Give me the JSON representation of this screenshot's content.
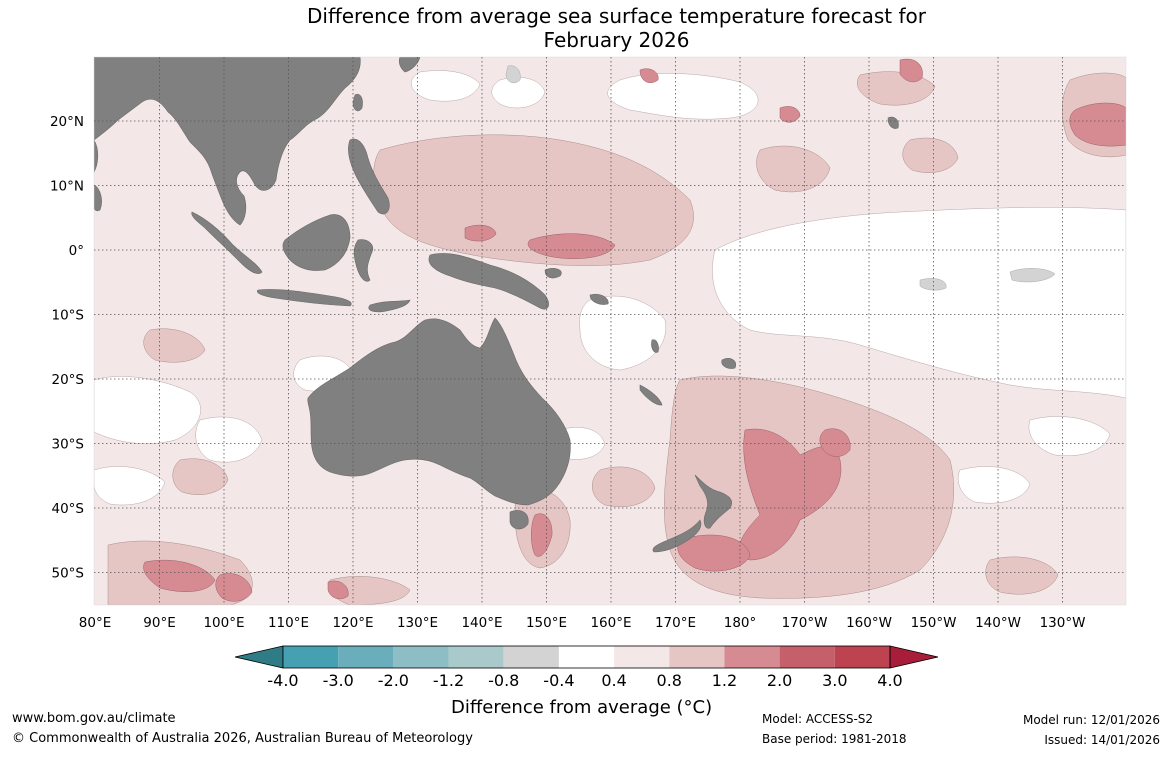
{
  "title_line1": "Difference from average sea surface temperature forecast for",
  "title_line2": "February 2026",
  "lat_labels": [
    "20°N",
    "10°N",
    "0°",
    "10°S",
    "20°S",
    "30°S",
    "40°S",
    "50°S"
  ],
  "lon_labels": [
    "80°E",
    "90°E",
    "100°E",
    "110°E",
    "120°E",
    "130°E",
    "140°E",
    "150°E",
    "160°E",
    "170°E",
    "180°",
    "170°W",
    "160°W",
    "150°W",
    "140°W",
    "130°W"
  ],
  "colorbar": {
    "ticks": [
      "-4.0",
      "-3.0",
      "-2.0",
      "-1.2",
      "-0.8",
      "-0.4",
      "0.4",
      "0.8",
      "1.2",
      "2.0",
      "3.0",
      "4.0"
    ],
    "colors": {
      "below_min": "#2f7c86",
      "bins": [
        "#45a1b1",
        "#6aadbb",
        "#8dbec6",
        "#a9c9cb",
        "#d3d3d3",
        "#ffffff",
        "#f4e7e7",
        "#e6c6c4",
        "#d68b93",
        "#c5606a",
        "#bd4350"
      ],
      "above_max": "#a71d3a"
    },
    "title": "Difference from average (°C)"
  },
  "colors": {
    "land": "#808080",
    "anomaly_0_4_to_0_8": "#f4e7e7",
    "anomaly_0_8_to_1_2": "#e6c6c4",
    "anomaly_1_2_to_2_0": "#d68b93",
    "anomaly_2_0_to_3_0": "#c5606a",
    "anomaly_neg_0_8_to_neg_0_4": "#d3d3d3"
  },
  "footer": {
    "website": "www.bom.gov.au/climate",
    "copyright": "© Commonwealth of Australia 2026, Australian Bureau of Meteorology",
    "model": "Model: ACCESS-S2",
    "base_period": "Base period: 1981-2018",
    "model_run": "Model run: 12/01/2026",
    "issued": "Issued: 14/01/2026"
  }
}
